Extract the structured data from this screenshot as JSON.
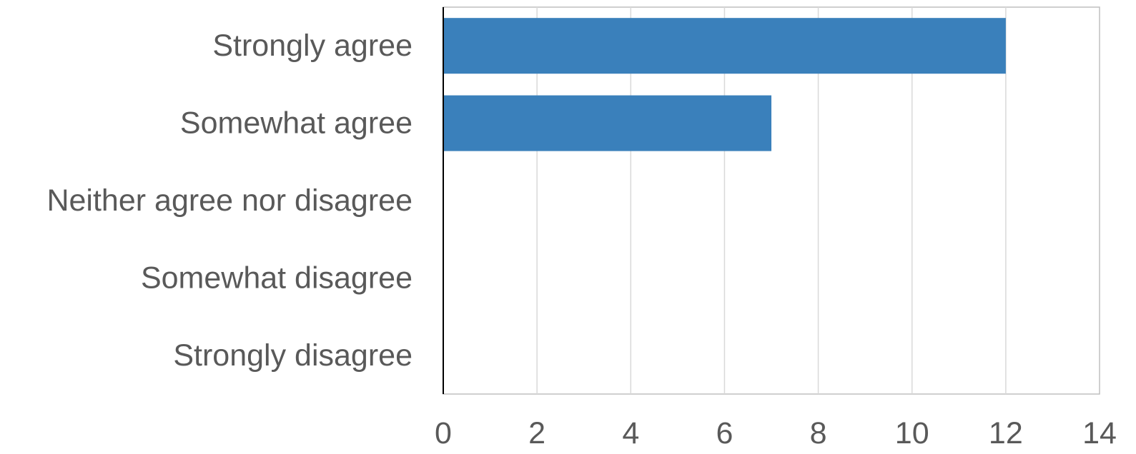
{
  "chart_data": {
    "type": "bar",
    "orientation": "horizontal",
    "categories": [
      "Strongly agree",
      "Somewhat agree",
      "Neither agree nor disagree",
      "Somewhat disagree",
      "Strongly disagree"
    ],
    "values": [
      12,
      7,
      0,
      0,
      0
    ],
    "xlim": [
      0,
      14
    ],
    "xticks": [
      0,
      2,
      4,
      6,
      8,
      10,
      12,
      14
    ],
    "title": "",
    "xlabel": "",
    "ylabel": "",
    "grid": "vertical",
    "legend": "none",
    "colors": {
      "bar": "#3a80bb",
      "grid": "#d9d9d9",
      "plot_border": "#bfbfbf",
      "axis_line": "#000000",
      "label": "#595959"
    }
  }
}
